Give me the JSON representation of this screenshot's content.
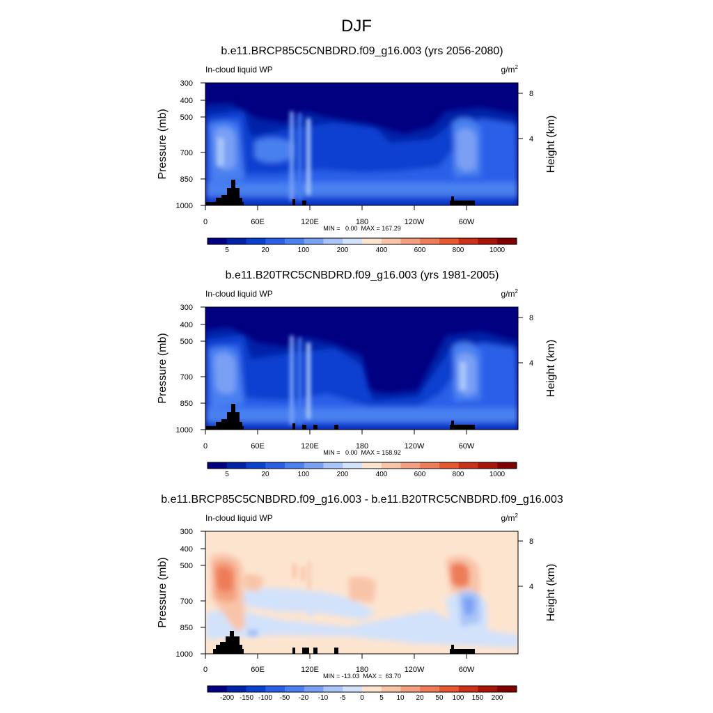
{
  "figure": {
    "title": "DJF"
  },
  "chart_data": [
    {
      "type": "heatmap",
      "title": "b.e11.BRCP85C5CNBDRD.f09_g16.003 (yrs 2056-2080)",
      "left_label": "In-cloud liquid WP",
      "unit_base": "g/m",
      "unit_exp": "2",
      "ylabel": "Pressure (mb)",
      "ylabel_right": "Height (km)",
      "y_ticks": [
        "300",
        "400",
        "500",
        "700",
        "850",
        "1000"
      ],
      "y_ticks_right": [
        "8",
        "4"
      ],
      "x_ticks": [
        "0",
        "60E",
        "120E",
        "180",
        "120W",
        "60W"
      ],
      "stats": "MIN =   0.00  MAX = 167.29",
      "colorbar_ticks": [
        "5",
        "20",
        "100",
        "200",
        "400",
        "600",
        "800",
        "1000"
      ],
      "colors": [
        "#000080",
        "#0022a8",
        "#0a40d0",
        "#2a60e8",
        "#4a80f0",
        "#7aa0f4",
        "#a8c4f8",
        "#d2e2fb",
        "#fde4cf",
        "#f8c4a8",
        "#f4a080",
        "#ee7c58",
        "#e85830",
        "#cc3018",
        "#a81408",
        "#800000"
      ],
      "levels": [
        2,
        5,
        10,
        20,
        50,
        100,
        150,
        200,
        300,
        400,
        500,
        600,
        700,
        800,
        1000
      ]
    },
    {
      "type": "heatmap",
      "title": "b.e11.B20TRC5CNBDRD.f09_g16.003 (yrs 1981-2005)",
      "left_label": "In-cloud liquid WP",
      "unit_base": "g/m",
      "unit_exp": "2",
      "ylabel": "Pressure (mb)",
      "ylabel_right": "Height (km)",
      "y_ticks": [
        "300",
        "400",
        "500",
        "700",
        "850",
        "1000"
      ],
      "y_ticks_right": [
        "8",
        "4"
      ],
      "x_ticks": [
        "0",
        "60E",
        "120E",
        "180",
        "120W",
        "60W"
      ],
      "stats": "MIN =   0.00  MAX = 158.92",
      "colorbar_ticks": [
        "5",
        "20",
        "100",
        "200",
        "400",
        "600",
        "800",
        "1000"
      ],
      "colors": [
        "#000080",
        "#0022a8",
        "#0a40d0",
        "#2a60e8",
        "#4a80f0",
        "#7aa0f4",
        "#a8c4f8",
        "#d2e2fb",
        "#fde4cf",
        "#f8c4a8",
        "#f4a080",
        "#ee7c58",
        "#e85830",
        "#cc3018",
        "#a81408",
        "#800000"
      ],
      "levels": [
        2,
        5,
        10,
        20,
        50,
        100,
        150,
        200,
        300,
        400,
        500,
        600,
        700,
        800,
        1000
      ]
    },
    {
      "type": "heatmap",
      "title": "b.e11.BRCP85C5CNBDRD.f09_g16.003 - b.e11.B20TRC5CNBDRD.f09_g16.003",
      "left_label": "In-cloud liquid WP",
      "unit_base": "g/m",
      "unit_exp": "2",
      "ylabel": "Pressure (mb)",
      "ylabel_right": "Height (km)",
      "y_ticks": [
        "300",
        "400",
        "500",
        "700",
        "850",
        "1000"
      ],
      "y_ticks_right": [
        "8",
        "4"
      ],
      "x_ticks": [
        "0",
        "60E",
        "120E",
        "180",
        "120W",
        "60W"
      ],
      "stats": "MIN = -13.03  MAX =  63.70",
      "colorbar_ticks": [
        "-200",
        "-150",
        "-100",
        "-50",
        "-20",
        "-10",
        "-5",
        "0",
        "5",
        "10",
        "20",
        "50",
        "100",
        "150",
        "200"
      ],
      "colors": [
        "#000080",
        "#0022a8",
        "#0a40d0",
        "#2a60e8",
        "#4a80f0",
        "#7aa0f4",
        "#a8c4f8",
        "#d2e2fb",
        "#fde4cf",
        "#f8c4a8",
        "#f4a080",
        "#ee7c58",
        "#e85830",
        "#cc3018",
        "#a81408",
        "#800000"
      ],
      "levels": [
        -200,
        -150,
        -100,
        -50,
        -20,
        -10,
        -5,
        0,
        5,
        10,
        20,
        50,
        100,
        150,
        200
      ]
    }
  ]
}
